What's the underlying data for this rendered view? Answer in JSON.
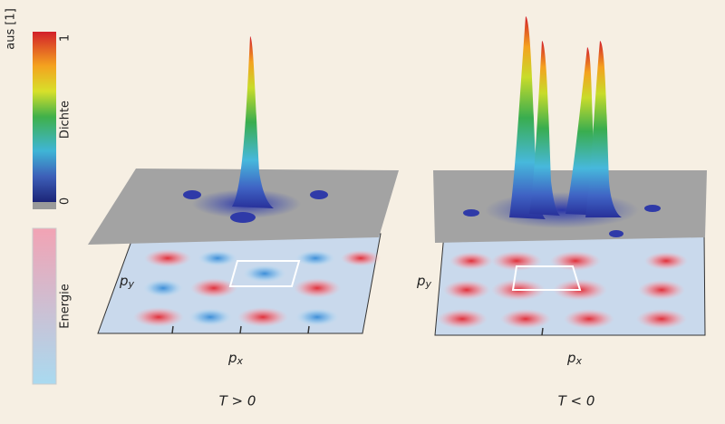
{
  "source": "aus [1]",
  "colorbar": {
    "density_label": "Dichte",
    "density_max": "1",
    "density_min": "0",
    "energy_label": "Energie"
  },
  "panels": [
    {
      "py": {
        "base": "p",
        "sub": "y"
      },
      "px": {
        "base": "p",
        "sub": "x"
      },
      "caption": "T > 0"
    },
    {
      "py": {
        "base": "p",
        "sub": "y"
      },
      "px": {
        "base": "p",
        "sub": "x"
      },
      "caption": "T < 0"
    }
  ]
}
